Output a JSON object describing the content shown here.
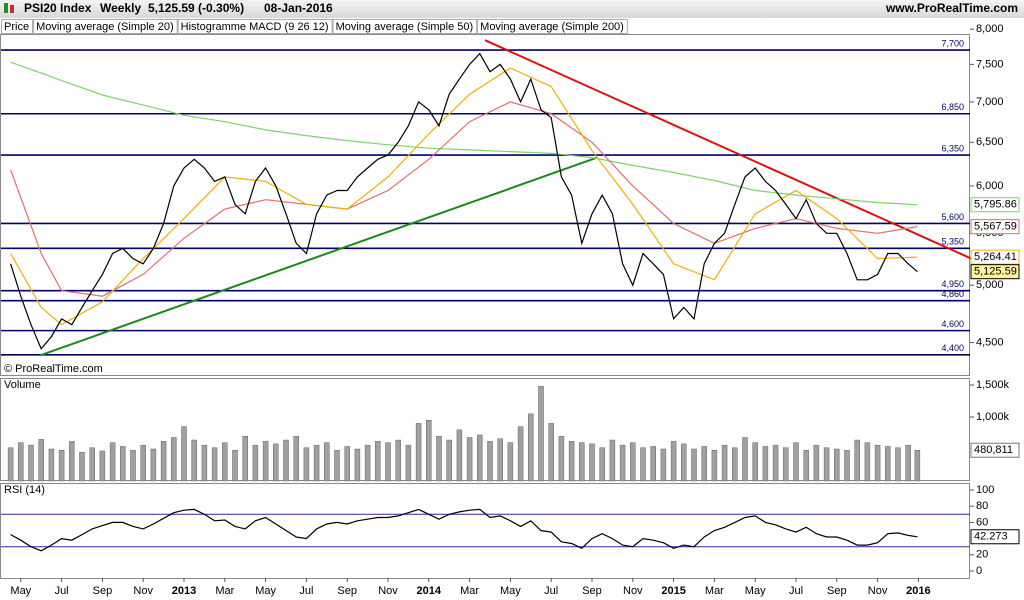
{
  "chart_data": [
    {
      "type": "line",
      "title": "PSI20 Index",
      "period": "Weekly",
      "change": "5,125.59 (-0.30%)",
      "date": "08-Jan-2016",
      "source": "www.ProRealTime.com",
      "copyright": "© ProRealTime.com",
      "extra_legend": "Histogramme MACD (9 26 12)",
      "log_scale": true,
      "xlim": [
        2.98,
        50.53
      ],
      "ylim": [
        4240,
        7930
      ],
      "yticks": [
        {
          "value": 4500,
          "label": "4,500"
        },
        {
          "value": 5000,
          "label": "5,000"
        },
        {
          "value": 5500,
          "label": "5,500"
        },
        {
          "value": 6000,
          "label": "6,000"
        },
        {
          "value": 6500,
          "label": "6,500"
        },
        {
          "value": 7000,
          "label": "7,000"
        },
        {
          "value": 7500,
          "label": "7,500"
        },
        {
          "value": 8000,
          "label": "8,000"
        }
      ],
      "level_color": "#000066",
      "levels": [
        {
          "value": 7700,
          "label": "7,700"
        },
        {
          "value": 6850,
          "label": "6,850"
        },
        {
          "value": 6350,
          "label": "6,350"
        },
        {
          "value": 5600,
          "label": "5,600"
        },
        {
          "value": 5350,
          "label": "5,350"
        },
        {
          "value": 4950,
          "label": "4,950"
        },
        {
          "value": 4860,
          "label": "4,860"
        },
        {
          "value": 4600,
          "label": "4,600"
        },
        {
          "value": 4400,
          "label": "4,400"
        }
      ],
      "trendlines": [
        {
          "color": "#e01010",
          "x": [
            26.75,
            51.0
          ],
          "values": [
            7840,
            5215
          ]
        },
        {
          "color": "#1a8a1a",
          "x": [
            4.94,
            32.25
          ],
          "values": [
            4395,
            6320
          ]
        }
      ],
      "series": [
        {
          "name": "Price",
          "color": "#000000",
          "label_fill": "#fff2a0",
          "last_label": "5,125.59",
          "x": [
            3.5,
            4,
            4.5,
            5,
            5.5,
            6,
            6.5,
            7,
            7.5,
            8,
            8.5,
            9,
            9.5,
            10,
            10.5,
            11,
            11.5,
            12,
            12.5,
            13,
            13.5,
            14,
            14.5,
            15,
            15.5,
            16,
            16.5,
            17,
            17.5,
            18,
            18.5,
            19,
            19.5,
            20,
            20.5,
            21,
            21.5,
            22,
            22.5,
            23,
            23.5,
            24,
            24.5,
            25,
            25.5,
            26,
            26.5,
            27,
            27.5,
            28,
            28.5,
            29,
            29.5,
            30,
            30.5,
            31,
            31.5,
            32,
            32.5,
            33,
            33.5,
            34,
            34.5,
            35,
            35.5,
            36,
            36.5,
            37,
            37.5,
            38,
            38.5,
            39,
            39.5,
            40,
            40.5,
            41,
            41.5,
            42,
            42.5,
            43,
            43.5,
            44,
            44.5,
            45,
            45.5,
            46,
            46.5,
            47,
            47.5,
            47.95
          ],
          "values": [
            5200,
            4900,
            4650,
            4450,
            4550,
            4700,
            4650,
            4800,
            4950,
            5100,
            5300,
            5350,
            5250,
            5200,
            5350,
            5600,
            6000,
            6200,
            6300,
            6200,
            6050,
            6100,
            5800,
            5700,
            6050,
            6200,
            6000,
            5700,
            5400,
            5300,
            5700,
            5900,
            5950,
            5950,
            6100,
            6200,
            6300,
            6350,
            6500,
            6700,
            7000,
            6900,
            6700,
            7100,
            7300,
            7500,
            7650,
            7400,
            7500,
            7300,
            7000,
            7300,
            6900,
            6800,
            6100,
            5900,
            5400,
            5700,
            5900,
            5700,
            5200,
            5000,
            5300,
            5200,
            5100,
            4700,
            4800,
            4700,
            5200,
            5400,
            5500,
            5800,
            6100,
            6200,
            6050,
            5950,
            5800,
            5650,
            5850,
            5600,
            5500,
            5500,
            5300,
            5050,
            5050,
            5100,
            5300,
            5300,
            5200,
            5125.59
          ]
        },
        {
          "name": "Moving average (Simple 20)",
          "color": "#f0b000",
          "label_fill": "#ffffff",
          "last_label": "5,264.41",
          "x": [
            3.5,
            5,
            6,
            8,
            10,
            12,
            14,
            16,
            18,
            20,
            22,
            24,
            26,
            28,
            30,
            32,
            34,
            36,
            38,
            40,
            42,
            44,
            46,
            47.95
          ],
          "values": [
            5300,
            4800,
            4650,
            4850,
            5250,
            5650,
            6100,
            6050,
            5800,
            5750,
            6100,
            6600,
            7100,
            7450,
            7200,
            6400,
            5800,
            5200,
            5050,
            5700,
            5950,
            5650,
            5250,
            5264.41
          ]
        },
        {
          "name": "Moving average (Simple 50)",
          "color": "#e07070",
          "label_fill": "#ffffff",
          "last_label": "5,567.59",
          "x": [
            3.5,
            5,
            6,
            8,
            10,
            12,
            14,
            16,
            18,
            20,
            22,
            24,
            26,
            28,
            30,
            32,
            34,
            36,
            38,
            40,
            42,
            44,
            46,
            47.95
          ],
          "values": [
            6180,
            5300,
            4950,
            4900,
            5100,
            5450,
            5750,
            5850,
            5800,
            5750,
            5950,
            6300,
            6750,
            7000,
            6850,
            6500,
            6000,
            5600,
            5400,
            5550,
            5650,
            5550,
            5500,
            5567.59
          ]
        },
        {
          "name": "Moving average (Simple 200)",
          "color": "#7fd26a",
          "label_fill": "#ffffff",
          "last_label": "5,795.86",
          "x": [
            3.5,
            5,
            6,
            8,
            10,
            12,
            14,
            16,
            18,
            20,
            22,
            24,
            26,
            28,
            30,
            32,
            34,
            36,
            38,
            40,
            42,
            44,
            46,
            47.95
          ],
          "values": [
            7530,
            7380,
            7280,
            7090,
            6960,
            6830,
            6750,
            6650,
            6580,
            6520,
            6470,
            6430,
            6410,
            6390,
            6370,
            6320,
            6230,
            6150,
            6060,
            5950,
            5900,
            5860,
            5820,
            5795.86
          ]
        }
      ]
    },
    {
      "type": "bar",
      "title": "Volume",
      "xlim": [
        2.98,
        50.53
      ],
      "ylim": [
        0,
        1610000
      ],
      "color": "#a0a0a0",
      "last_label": "480,811",
      "yticks": [
        {
          "value": 1000000,
          "label": "1,000k"
        },
        {
          "value": 1500000,
          "label": "1,500k"
        }
      ],
      "x": [
        3.5,
        4,
        4.5,
        5,
        5.5,
        6,
        6.5,
        7,
        7.5,
        8,
        8.5,
        9,
        9.5,
        10,
        10.5,
        11,
        11.5,
        12,
        12.5,
        13,
        13.5,
        14,
        14.5,
        15,
        15.5,
        16,
        16.5,
        17,
        17.5,
        18,
        18.5,
        19,
        19.5,
        20,
        20.5,
        21,
        21.5,
        22,
        22.5,
        23,
        23.5,
        24,
        24.5,
        25,
        25.5,
        26,
        26.5,
        27,
        27.5,
        28,
        28.5,
        29,
        29.5,
        30,
        30.5,
        31,
        31.5,
        32,
        32.5,
        33,
        33.5,
        34,
        34.5,
        35,
        35.5,
        36,
        36.5,
        37,
        37.5,
        38,
        38.5,
        39,
        39.5,
        40,
        40.5,
        41,
        41.5,
        42,
        42.5,
        43,
        43.5,
        44,
        44.5,
        45,
        45.5,
        46,
        46.5,
        47,
        47.5,
        47.95
      ],
      "values": [
        520000,
        600000,
        560000,
        650000,
        500000,
        480000,
        620000,
        450000,
        520000,
        470000,
        600000,
        540000,
        480000,
        560000,
        500000,
        620000,
        680000,
        850000,
        640000,
        560000,
        520000,
        600000,
        480000,
        700000,
        560000,
        620000,
        580000,
        640000,
        700000,
        520000,
        560000,
        600000,
        480000,
        540000,
        500000,
        560000,
        620000,
        600000,
        640000,
        560000,
        900000,
        950000,
        700000,
        640000,
        800000,
        680000,
        720000,
        620000,
        660000,
        600000,
        850000,
        1050000,
        1480000,
        900000,
        700000,
        620000,
        600000,
        580000,
        520000,
        640000,
        560000,
        600000,
        520000,
        540000,
        500000,
        620000,
        580000,
        500000,
        540000,
        480000,
        560000,
        520000,
        680000,
        600000,
        540000,
        560000,
        520000,
        600000,
        480000,
        560000,
        520000,
        500000,
        480000,
        640000,
        600000,
        560000,
        540000,
        520000,
        560000,
        480811
      ]
    },
    {
      "type": "line",
      "title": "RSI (14)",
      "xlim": [
        2.98,
        50.53
      ],
      "ylim": [
        -8.6,
        108.6
      ],
      "yticks": [
        0,
        20,
        60,
        80,
        100
      ],
      "bands": [
        30,
        70
      ],
      "band_color": "#2030a0",
      "xticks": [
        {
          "value": 4,
          "label": "May"
        },
        {
          "value": 6,
          "label": "Jul"
        },
        {
          "value": 8,
          "label": "Sep"
        },
        {
          "value": 10,
          "label": "Nov"
        },
        {
          "value": 12,
          "label": "2013"
        },
        {
          "value": 14,
          "label": "Mar"
        },
        {
          "value": 16,
          "label": "May"
        },
        {
          "value": 18,
          "label": "Jul"
        },
        {
          "value": 20,
          "label": "Sep"
        },
        {
          "value": 22,
          "label": "Nov"
        },
        {
          "value": 24,
          "label": "2014"
        },
        {
          "value": 26,
          "label": "Mar"
        },
        {
          "value": 28,
          "label": "May"
        },
        {
          "value": 30,
          "label": "Jul"
        },
        {
          "value": 32,
          "label": "Sep"
        },
        {
          "value": 34,
          "label": "Nov"
        },
        {
          "value": 36,
          "label": "2015"
        },
        {
          "value": 38,
          "label": "Mar"
        },
        {
          "value": 40,
          "label": "May"
        },
        {
          "value": 42,
          "label": "Jul"
        },
        {
          "value": 44,
          "label": "Sep"
        },
        {
          "value": 46,
          "label": "Nov"
        },
        {
          "value": 48,
          "label": "2016"
        }
      ],
      "series": [
        {
          "color": "#000000",
          "label_fill": "#ffffff",
          "last_label": "42.273",
          "x": [
            3.5,
            4,
            4.5,
            5,
            5.5,
            6,
            6.5,
            7,
            7.5,
            8,
            8.5,
            9,
            9.5,
            10,
            10.5,
            11,
            11.5,
            12,
            12.5,
            13,
            13.5,
            14,
            14.5,
            15,
            15.5,
            16,
            16.5,
            17,
            17.5,
            18,
            18.5,
            19,
            19.5,
            20,
            20.5,
            21,
            21.5,
            22,
            22.5,
            23,
            23.5,
            24,
            24.5,
            25,
            25.5,
            26,
            26.5,
            27,
            27.5,
            28,
            28.5,
            29,
            29.5,
            30,
            30.5,
            31,
            31.5,
            32,
            32.5,
            33,
            33.5,
            34,
            34.5,
            35,
            35.5,
            36,
            36.5,
            37,
            37.5,
            38,
            38.5,
            39,
            39.5,
            40,
            40.5,
            41,
            41.5,
            42,
            42.5,
            43,
            43.5,
            44,
            44.5,
            45,
            45.5,
            46,
            46.5,
            47,
            47.5,
            47.95
          ],
          "values": [
            45,
            38,
            30,
            25,
            32,
            40,
            38,
            45,
            52,
            56,
            60,
            60,
            55,
            52,
            58,
            65,
            72,
            75,
            76,
            70,
            62,
            63,
            55,
            52,
            62,
            66,
            58,
            50,
            42,
            40,
            52,
            58,
            60,
            58,
            62,
            64,
            66,
            66,
            68,
            72,
            76,
            70,
            64,
            70,
            73,
            75,
            76,
            66,
            68,
            62,
            55,
            62,
            50,
            48,
            36,
            34,
            28,
            40,
            46,
            40,
            32,
            30,
            40,
            38,
            35,
            28,
            32,
            30,
            42,
            50,
            54,
            60,
            66,
            68,
            60,
            57,
            52,
            48,
            54,
            46,
            42,
            42,
            38,
            32,
            32,
            35,
            46,
            47,
            44,
            42.273
          ]
        }
      ]
    }
  ]
}
